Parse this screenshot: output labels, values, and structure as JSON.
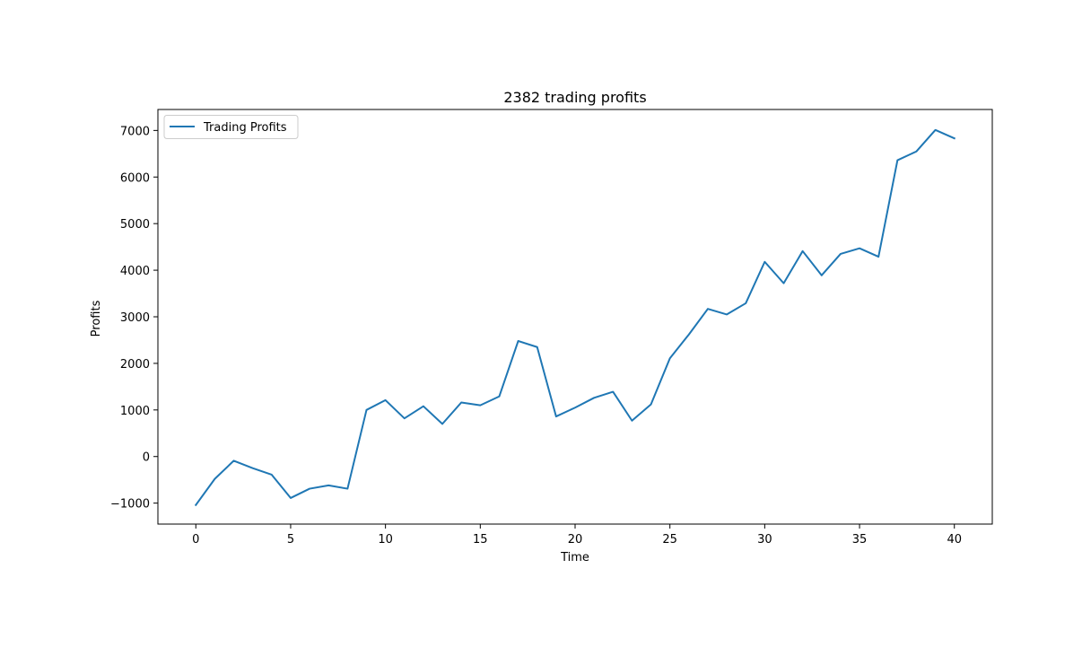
{
  "chart_data": {
    "type": "line",
    "title": "2382 trading profits",
    "xlabel": "Time",
    "ylabel": "Profits",
    "xlim": [
      -2,
      42
    ],
    "ylim": [
      -1450,
      7450
    ],
    "x_ticks": [
      0,
      5,
      10,
      15,
      20,
      25,
      30,
      35,
      40
    ],
    "y_ticks": [
      -1000,
      0,
      1000,
      2000,
      3000,
      4000,
      5000,
      6000,
      7000
    ],
    "x_tick_labels": [
      "0",
      "5",
      "10",
      "15",
      "20",
      "25",
      "30",
      "35",
      "40"
    ],
    "y_tick_labels": [
      "−1000",
      "0",
      "1000",
      "2000",
      "3000",
      "4000",
      "5000",
      "6000",
      "7000"
    ],
    "grid": false,
    "legend_position": "top-left",
    "series": [
      {
        "name": "Trading Profits",
        "color": "#1f77b4",
        "x": [
          0,
          1,
          2,
          3,
          4,
          5,
          6,
          7,
          8,
          9,
          10,
          11,
          12,
          13,
          14,
          15,
          16,
          17,
          18,
          19,
          20,
          21,
          22,
          23,
          24,
          25,
          26,
          27,
          28,
          29,
          30,
          31,
          32,
          33,
          34,
          35,
          36,
          37,
          38,
          39,
          40
        ],
        "values": [
          -1040,
          -480,
          -90,
          -250,
          -390,
          -890,
          -690,
          -620,
          -690,
          1000,
          1210,
          820,
          1080,
          700,
          1160,
          1100,
          1290,
          2480,
          2350,
          860,
          1050,
          1260,
          1390,
          770,
          1120,
          2110,
          2620,
          3170,
          3050,
          3290,
          4180,
          3720,
          4410,
          3890,
          4350,
          4470,
          4290,
          6360,
          6550,
          7010,
          6830
        ]
      }
    ]
  }
}
